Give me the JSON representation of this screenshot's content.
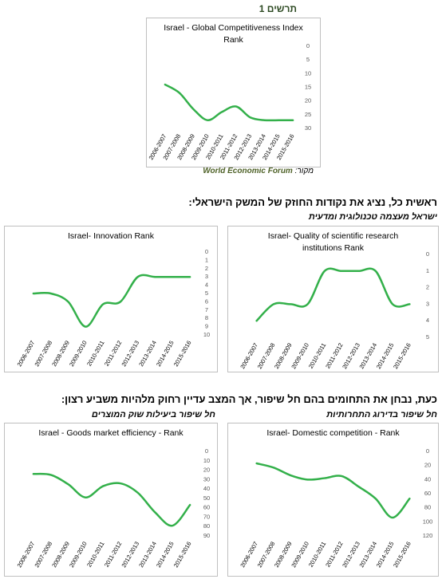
{
  "figure_label": "תרשים 1",
  "source_label": "מקור:",
  "source": "World Economic Forum",
  "heading_strengths": "ראשית כל, נציג את נקודות החוזק של המשק הישראלי:",
  "subheading_strengths": "ישראל מעצמה טכנולוגית ומדעית",
  "heading_improvements": "כעת, נבחן את התחומים בהם חל שיפור, אך המצב עדיין רחוק מלהיות משביע רצון:",
  "subheading_goods": "חל שיפור ביעילות שוק המוצרים",
  "subheading_competition": "חל שיפור בדירוג התחרותיות",
  "chart_data": [
    {
      "type": "line",
      "title": "Israel - Global Competitiveness Index Rank",
      "categories": [
        "2006-2007",
        "2007-2008",
        "2008-2009",
        "2009-2010",
        "2010-2011",
        "2011-2012",
        "2012-2013",
        "2013-2014",
        "2014-2015",
        "2015-2016"
      ],
      "values": [
        14,
        17,
        23,
        27,
        24,
        22,
        26,
        27,
        27,
        27
      ],
      "color": "#33b04a",
      "ylim": [
        0,
        30
      ],
      "yticks": [
        0,
        5,
        10,
        15,
        20,
        25,
        30
      ],
      "y_reversed": true
    },
    {
      "type": "line",
      "title": "Israel- Innovation Rank",
      "categories": [
        "2006-2007",
        "2007-2008",
        "2008-2009",
        "2009-2010",
        "2010-2011",
        "2011-2012",
        "2012-2013",
        "2013-2014",
        "2014-2015",
        "2015-2016"
      ],
      "values": [
        5,
        5,
        6,
        9,
        6.3,
        6,
        3,
        3,
        3,
        3
      ],
      "color": "#33b04a",
      "ylim": [
        0,
        10
      ],
      "yticks": [
        0,
        1,
        2,
        3,
        4,
        5,
        6,
        7,
        8,
        9,
        10
      ],
      "y_reversed": true
    },
    {
      "type": "line",
      "title": "Israel- Quality of scientific research institutions Rank",
      "categories": [
        "2006-2007",
        "2007-2008",
        "2008-2009",
        "2009-2010",
        "2010-2011",
        "2011-2012",
        "2012-2013",
        "2013-2014",
        "2014-2015",
        "2015-2016"
      ],
      "values": [
        4,
        3,
        3,
        3,
        1,
        1,
        1,
        1,
        3,
        3
      ],
      "color": "#33b04a",
      "ylim": [
        0,
        5
      ],
      "yticks": [
        0,
        1,
        2,
        3,
        4,
        5
      ],
      "y_reversed": true
    },
    {
      "type": "line",
      "title": "Israel - Goods market efficiency - Rank",
      "categories": [
        "2006-2007",
        "2007-2008",
        "2008-2009",
        "2009-2010",
        "2010-2011",
        "2011-2012",
        "2012-2013",
        "2013-2014",
        "2014-2015",
        "2015-2016"
      ],
      "values": [
        24,
        25,
        35,
        49,
        37,
        34,
        44,
        65,
        79,
        57
      ],
      "color": "#33b04a",
      "ylim": [
        0,
        90
      ],
      "yticks": [
        0,
        10,
        20,
        30,
        40,
        50,
        60,
        70,
        80,
        90
      ],
      "y_reversed": true
    },
    {
      "type": "line",
      "title": "Israel- Domestic competition - Rank",
      "categories": [
        "2006-2007",
        "2007-2008",
        "2008-2009",
        "2009-2010",
        "2010-2011",
        "2011-2012",
        "2012-2013",
        "2013-2014",
        "2014-2015",
        "2015-2016"
      ],
      "values": [
        17,
        23,
        34,
        40,
        38,
        35,
        50,
        67,
        94,
        67
      ],
      "color": "#33b04a",
      "ylim": [
        0,
        120
      ],
      "yticks": [
        0,
        20,
        40,
        60,
        80,
        100,
        120
      ],
      "y_reversed": true
    }
  ]
}
